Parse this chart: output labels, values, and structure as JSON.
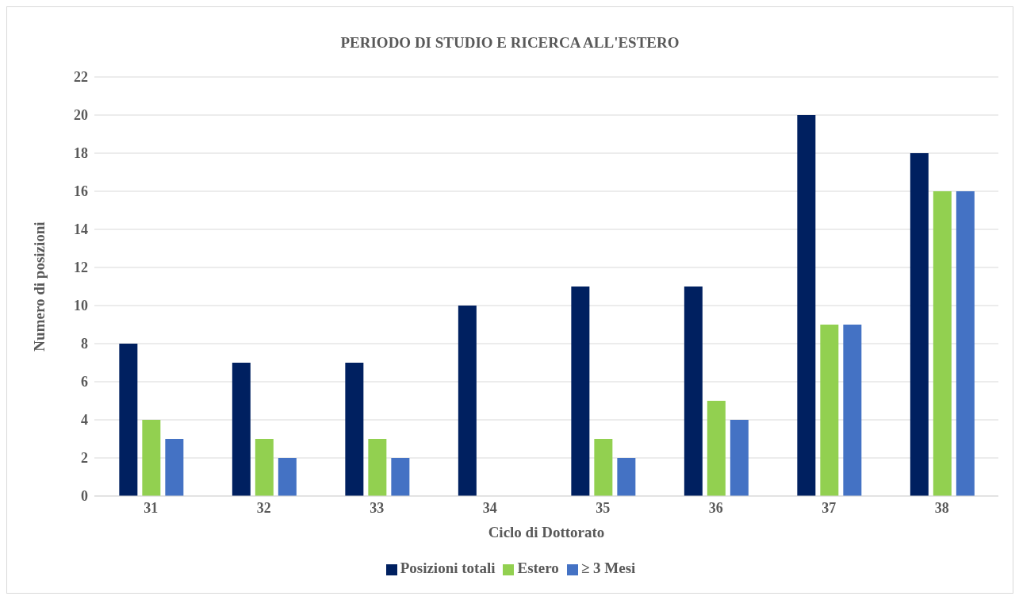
{
  "chart_data": {
    "type": "bar",
    "title": "PERIODO DI STUDIO E RICERCA ALL'ESTERO",
    "xlabel": "Ciclo di Dottorato",
    "ylabel": "Numero di posizioni",
    "categories": [
      "31",
      "32",
      "33",
      "34",
      "35",
      "36",
      "37",
      "38"
    ],
    "series": [
      {
        "name": "Posizioni totali",
        "color": "#002060",
        "values": [
          8,
          7,
          7,
          10,
          11,
          11,
          20,
          18
        ]
      },
      {
        "name": "Estero",
        "color": "#92d050",
        "values": [
          4,
          3,
          3,
          0,
          3,
          5,
          9,
          16
        ]
      },
      {
        "name": "≥ 3 Mesi",
        "color": "#4472c4",
        "values": [
          3,
          2,
          2,
          0,
          2,
          4,
          9,
          16
        ]
      }
    ],
    "ylim": [
      0,
      22
    ],
    "yticks": [
      0,
      2,
      4,
      6,
      8,
      10,
      12,
      14,
      16,
      18,
      20,
      22
    ],
    "grid": "y",
    "legend": "bottom"
  }
}
